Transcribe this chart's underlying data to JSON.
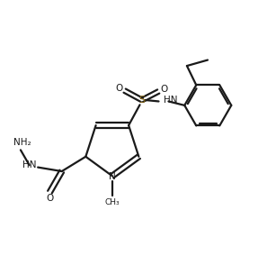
{
  "bg_color": "#ffffff",
  "line_color": "#1a1a1a",
  "bond_width": 1.6,
  "figsize": [
    2.97,
    2.84
  ],
  "dpi": 100,
  "xlim": [
    0,
    10
  ],
  "ylim": [
    0,
    9.5
  ]
}
